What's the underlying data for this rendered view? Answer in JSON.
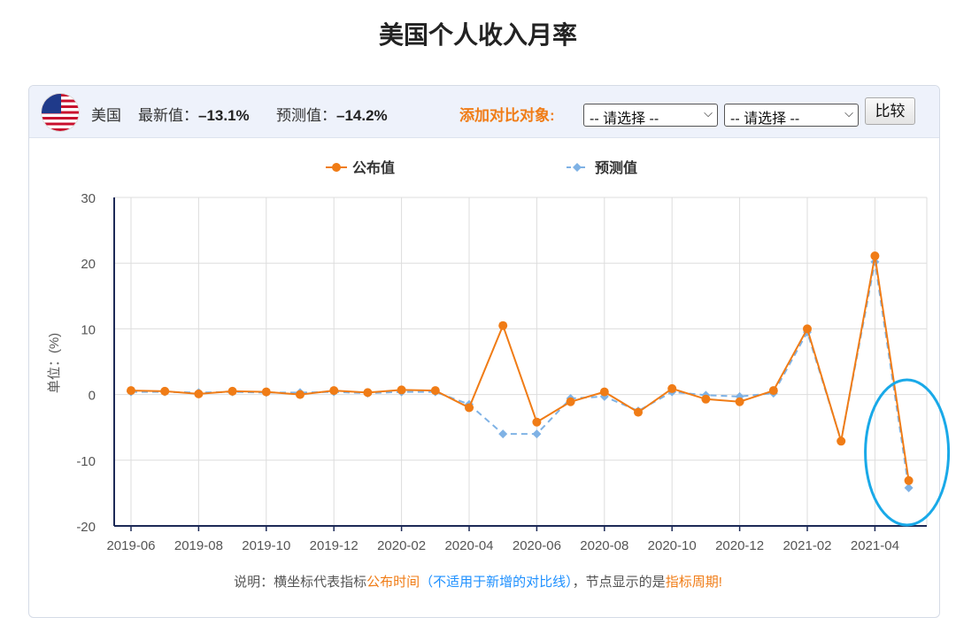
{
  "page": {
    "title": "美国个人收入月率"
  },
  "header": {
    "country": "美国",
    "latest_label": "最新值：",
    "latest_value": "–13.1%",
    "forecast_label": "预测值：",
    "forecast_value": "–14.2%",
    "compare_label": "添加对比对象:",
    "select1": "-- 请选择 --",
    "select2": "-- 请选择 --",
    "compare_button": "比较",
    "flag_icon": "us-flag-icon"
  },
  "chart_data": {
    "type": "line",
    "title": "",
    "ylabel": "单位：(%)",
    "xlabel": "",
    "ylim": [
      -20,
      30
    ],
    "yticks": [
      -20,
      -10,
      0,
      10,
      20,
      30
    ],
    "grid": true,
    "legend_position": "top-center",
    "x": [
      "2019-06",
      "2019-07",
      "2019-08",
      "2019-09",
      "2019-10",
      "2019-11",
      "2019-12",
      "2020-01",
      "2020-02",
      "2020-03",
      "2020-04",
      "2020-05",
      "2020-06",
      "2020-07",
      "2020-08",
      "2020-09",
      "2020-10",
      "2020-11",
      "2020-12",
      "2021-01",
      "2021-02",
      "2021-03",
      "2021-04",
      "2021-05"
    ],
    "xtick_labels": [
      "2019-06",
      "2019-08",
      "2019-10",
      "2019-12",
      "2020-02",
      "2020-04",
      "2020-06",
      "2020-08",
      "2020-10",
      "2020-12",
      "2021-02",
      "2021-04"
    ],
    "series": [
      {
        "name": "公布值",
        "color": "#f07c16",
        "style": "solid",
        "marker": "circle",
        "values": [
          0.6,
          0.5,
          0.1,
          0.5,
          0.4,
          0.0,
          0.6,
          0.3,
          0.7,
          0.6,
          -2.0,
          10.5,
          -4.2,
          -1.1,
          0.4,
          -2.7,
          0.9,
          -0.7,
          -1.1,
          0.6,
          10.0,
          -7.1,
          21.1,
          -13.1
        ]
      },
      {
        "name": "预测值",
        "color": "#7fb2e5",
        "style": "dashed",
        "marker": "diamond",
        "values": [
          0.4,
          0.4,
          0.3,
          0.4,
          0.3,
          0.3,
          0.4,
          0.2,
          0.4,
          0.4,
          -1.5,
          -6.0,
          -6.0,
          -0.6,
          -0.3,
          -2.5,
          0.4,
          -0.1,
          -0.3,
          0.2,
          9.5,
          -7.0,
          20.2,
          -14.2
        ]
      }
    ],
    "highlight": {
      "shape": "ellipse",
      "color": "#19a9e8",
      "target_index": 23
    }
  },
  "footer": {
    "prefix": "说明：横坐标代表指标",
    "publish_time": "公布时间",
    "not_applicable": "（不适用于新增的对比线）",
    "middle": "，节点显示的是",
    "period": "指标周期",
    "end": "!"
  }
}
